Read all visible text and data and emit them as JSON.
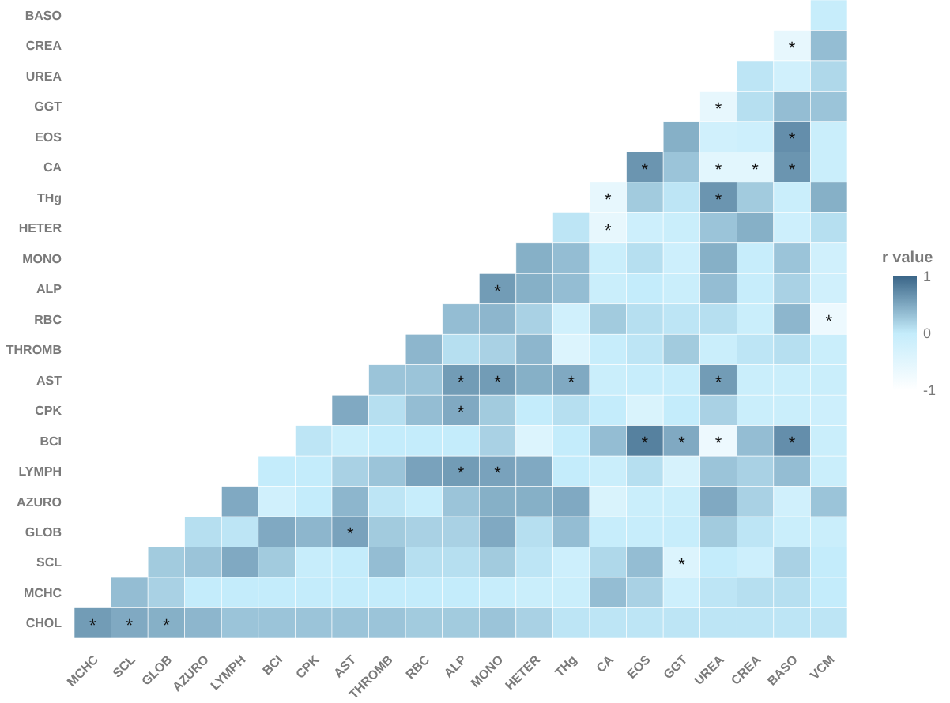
{
  "chart_data": {
    "type": "heatmap",
    "clabel": "r value",
    "clim": [
      -1,
      1
    ],
    "cticks": [
      -1,
      0,
      1
    ],
    "categories": [
      "MCHC",
      "SCL",
      "GLOB",
      "AZURO",
      "LYMPH",
      "BCI",
      "CPK",
      "AST",
      "THROMB",
      "RBC",
      "ALP",
      "MONO",
      "HETER",
      "THg",
      "CA",
      "EOS",
      "GGT",
      "UREA",
      "CREA",
      "BASO",
      "VCM"
    ],
    "y_categories": [
      "BASO",
      "CREA",
      "UREA",
      "GGT",
      "EOS",
      "CA",
      "THg",
      "HETER",
      "MONO",
      "ALP",
      "RBC",
      "THROMB",
      "AST",
      "CPK",
      "BCI",
      "LYMPH",
      "AZURO",
      "GLOB",
      "SCL",
      "MCHC",
      "CHOL"
    ],
    "cells": [
      [
        null,
        null,
        null,
        null,
        null,
        null,
        null,
        null,
        null,
        null,
        null,
        null,
        null,
        null,
        null,
        null,
        null,
        null,
        null,
        null,
        -0.05
      ],
      [
        null,
        null,
        null,
        null,
        null,
        null,
        null,
        null,
        null,
        null,
        null,
        null,
        null,
        null,
        null,
        null,
        null,
        null,
        null,
        -0.6,
        0.35
      ],
      [
        null,
        null,
        null,
        null,
        null,
        null,
        null,
        null,
        null,
        null,
        null,
        null,
        null,
        null,
        null,
        null,
        null,
        null,
        0.05,
        -0.2,
        0.15
      ],
      [
        null,
        null,
        null,
        null,
        null,
        null,
        null,
        null,
        null,
        null,
        null,
        null,
        null,
        null,
        null,
        null,
        null,
        -0.6,
        0.1,
        0.35,
        0.3
      ],
      [
        null,
        null,
        null,
        null,
        null,
        null,
        null,
        null,
        null,
        null,
        null,
        null,
        null,
        null,
        null,
        null,
        0.45,
        -0.2,
        -0.15,
        0.7,
        -0.1
      ],
      [
        null,
        null,
        null,
        null,
        null,
        null,
        null,
        null,
        null,
        null,
        null,
        null,
        null,
        null,
        null,
        0.65,
        0.3,
        -0.5,
        -0.5,
        0.65,
        -0.1
      ],
      [
        null,
        null,
        null,
        null,
        null,
        null,
        null,
        null,
        null,
        null,
        null,
        null,
        null,
        null,
        -0.6,
        0.25,
        0.05,
        0.65,
        0.25,
        -0.1,
        0.45
      ],
      [
        null,
        null,
        null,
        null,
        null,
        null,
        null,
        null,
        null,
        null,
        null,
        null,
        null,
        0.05,
        -0.6,
        -0.15,
        -0.1,
        0.3,
        0.45,
        -0.15,
        0.1
      ],
      [
        null,
        null,
        null,
        null,
        null,
        null,
        null,
        null,
        null,
        null,
        null,
        null,
        0.45,
        0.35,
        -0.1,
        0.1,
        -0.15,
        0.45,
        -0.05,
        0.3,
        -0.2
      ],
      [
        null,
        null,
        null,
        null,
        null,
        null,
        null,
        null,
        null,
        null,
        null,
        0.6,
        0.45,
        0.35,
        -0.1,
        0,
        -0.1,
        0.35,
        -0.05,
        0.2,
        -0.2
      ],
      [
        null,
        null,
        null,
        null,
        null,
        null,
        null,
        null,
        null,
        null,
        0.35,
        0.4,
        0.2,
        -0.2,
        0.25,
        0.1,
        0.05,
        0.1,
        -0.1,
        0.4,
        -0.7
      ],
      [
        null,
        null,
        null,
        null,
        null,
        null,
        null,
        null,
        null,
        0.4,
        0.1,
        0.2,
        0.4,
        -0.4,
        -0.05,
        0.05,
        0.25,
        -0.1,
        0.05,
        0.1,
        -0.1
      ],
      [
        null,
        null,
        null,
        null,
        null,
        null,
        null,
        null,
        0.3,
        0.3,
        0.6,
        0.6,
        0.45,
        0.5,
        -0.1,
        -0.05,
        -0.05,
        0.6,
        -0.1,
        -0.1,
        -0.1
      ],
      [
        null,
        null,
        null,
        null,
        null,
        null,
        null,
        0.5,
        0.1,
        0.35,
        0.5,
        0.25,
        0,
        0.1,
        0,
        -0.35,
        0,
        0.2,
        -0.1,
        -0.1,
        -0.15
      ],
      [
        null,
        null,
        null,
        null,
        null,
        null,
        0.05,
        -0.1,
        0,
        0,
        0,
        0.2,
        -0.4,
        0,
        0.35,
        0.8,
        0.5,
        -0.7,
        0.35,
        0.7,
        -0.1
      ],
      [
        null,
        null,
        null,
        null,
        null,
        0,
        0,
        0.2,
        0.3,
        0.55,
        0.6,
        0.55,
        0.5,
        0,
        -0.1,
        0.1,
        -0.3,
        0.3,
        0.2,
        0.35,
        -0.1
      ],
      [
        null,
        null,
        null,
        null,
        0.5,
        -0.2,
        0,
        0.4,
        0.05,
        -0.05,
        0.3,
        0.45,
        0.45,
        0.5,
        -0.35,
        -0.1,
        -0.1,
        0.5,
        0.2,
        -0.2,
        0.3
      ],
      [
        null,
        null,
        null,
        0.1,
        0.05,
        0.5,
        0.4,
        0.55,
        0.25,
        0.2,
        0.2,
        0.5,
        0.1,
        0.35,
        -0.05,
        -0.05,
        -0.05,
        0.25,
        0.05,
        -0.1,
        -0.1
      ],
      [
        null,
        null,
        0.25,
        0.3,
        0.5,
        0.25,
        -0.05,
        0,
        0.35,
        0.1,
        0.1,
        0.25,
        0.05,
        -0.15,
        0.15,
        0.35,
        -0.4,
        0,
        -0.15,
        0.2,
        0
      ],
      [
        null,
        0.35,
        0.2,
        0,
        0,
        0,
        0,
        0,
        0,
        0,
        0,
        -0.05,
        -0.1,
        -0.1,
        0.35,
        0.2,
        -0.15,
        0.05,
        0.1,
        0.1,
        0
      ],
      [
        0.6,
        0.5,
        0.45,
        0.4,
        0.3,
        0.3,
        0.3,
        0.3,
        0.3,
        0.25,
        0.25,
        0.3,
        0.2,
        0.05,
        0.05,
        0.05,
        0.05,
        0.05,
        0.05,
        0.05,
        0.05
      ]
    ],
    "cell_labels": [
      [
        null,
        null,
        null,
        null,
        null,
        null,
        null,
        null,
        null,
        null,
        null,
        null,
        null,
        null,
        null,
        null,
        null,
        null,
        null,
        null,
        null
      ],
      [
        null,
        null,
        null,
        null,
        null,
        null,
        null,
        null,
        null,
        null,
        null,
        null,
        null,
        null,
        null,
        null,
        null,
        null,
        null,
        "*",
        null
      ],
      [
        null,
        null,
        null,
        null,
        null,
        null,
        null,
        null,
        null,
        null,
        null,
        null,
        null,
        null,
        null,
        null,
        null,
        null,
        null,
        null,
        null
      ],
      [
        null,
        null,
        null,
        null,
        null,
        null,
        null,
        null,
        null,
        null,
        null,
        null,
        null,
        null,
        null,
        null,
        null,
        "*",
        null,
        null,
        null
      ],
      [
        null,
        null,
        null,
        null,
        null,
        null,
        null,
        null,
        null,
        null,
        null,
        null,
        null,
        null,
        null,
        null,
        null,
        null,
        null,
        "*",
        null
      ],
      [
        null,
        null,
        null,
        null,
        null,
        null,
        null,
        null,
        null,
        null,
        null,
        null,
        null,
        null,
        null,
        "*",
        null,
        "*",
        "*",
        "*",
        null
      ],
      [
        null,
        null,
        null,
        null,
        null,
        null,
        null,
        null,
        null,
        null,
        null,
        null,
        null,
        null,
        "*",
        null,
        null,
        "*",
        null,
        null,
        null
      ],
      [
        null,
        null,
        null,
        null,
        null,
        null,
        null,
        null,
        null,
        null,
        null,
        null,
        null,
        null,
        "*",
        null,
        null,
        null,
        null,
        null,
        null
      ],
      [
        null,
        null,
        null,
        null,
        null,
        null,
        null,
        null,
        null,
        null,
        null,
        null,
        null,
        null,
        null,
        null,
        null,
        null,
        null,
        null,
        null
      ],
      [
        null,
        null,
        null,
        null,
        null,
        null,
        null,
        null,
        null,
        null,
        null,
        "*",
        null,
        null,
        null,
        null,
        null,
        null,
        null,
        null,
        null
      ],
      [
        null,
        null,
        null,
        null,
        null,
        null,
        null,
        null,
        null,
        null,
        null,
        null,
        null,
        null,
        null,
        null,
        null,
        null,
        null,
        null,
        "*"
      ],
      [
        null,
        null,
        null,
        null,
        null,
        null,
        null,
        null,
        null,
        null,
        null,
        null,
        null,
        null,
        null,
        null,
        null,
        null,
        null,
        null,
        null
      ],
      [
        null,
        null,
        null,
        null,
        null,
        null,
        null,
        null,
        null,
        null,
        "*",
        "*",
        null,
        "*",
        null,
        null,
        null,
        "*",
        null,
        null,
        null
      ],
      [
        null,
        null,
        null,
        null,
        null,
        null,
        null,
        null,
        null,
        null,
        "*",
        null,
        null,
        null,
        null,
        null,
        null,
        null,
        null,
        null,
        null
      ],
      [
        null,
        null,
        null,
        null,
        null,
        null,
        null,
        null,
        null,
        null,
        null,
        null,
        null,
        null,
        null,
        "*",
        "*",
        "*",
        null,
        "*",
        null
      ],
      [
        null,
        null,
        null,
        null,
        null,
        null,
        null,
        null,
        null,
        null,
        "*",
        "*",
        null,
        null,
        null,
        null,
        null,
        null,
        null,
        null,
        null
      ],
      [
        null,
        null,
        null,
        null,
        null,
        null,
        null,
        null,
        null,
        null,
        null,
        null,
        null,
        null,
        null,
        null,
        null,
        null,
        null,
        null,
        null
      ],
      [
        null,
        null,
        null,
        null,
        null,
        null,
        null,
        "*",
        null,
        null,
        null,
        null,
        null,
        null,
        null,
        null,
        null,
        null,
        null,
        null,
        null
      ],
      [
        null,
        null,
        null,
        null,
        null,
        null,
        null,
        null,
        null,
        null,
        null,
        null,
        null,
        null,
        null,
        null,
        "*",
        null,
        null,
        null,
        null
      ],
      [
        null,
        null,
        null,
        null,
        null,
        null,
        null,
        null,
        null,
        null,
        null,
        null,
        null,
        null,
        null,
        null,
        null,
        null,
        null,
        null,
        null
      ],
      [
        "*",
        "*",
        "*",
        null,
        null,
        null,
        null,
        null,
        null,
        null,
        null,
        null,
        null,
        null,
        null,
        null,
        null,
        null,
        null,
        null,
        null
      ]
    ]
  }
}
